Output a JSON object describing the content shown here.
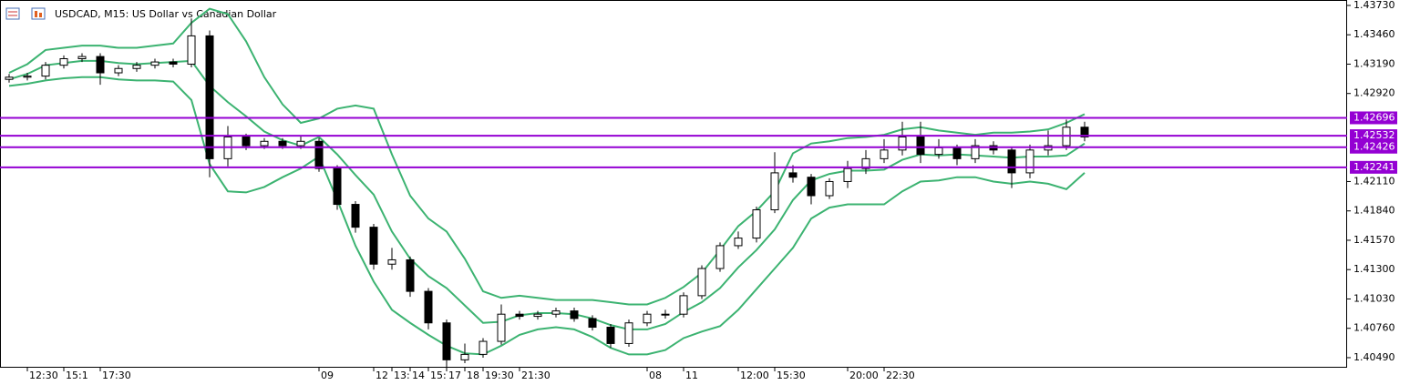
{
  "chart_data": {
    "type": "candlestick",
    "title": "USDCAD, M15:  US Dollar vs Canadian Dollar",
    "categories": [
      null,
      "12:30",
      null,
      "15:1",
      null,
      "17:30",
      null,
      null,
      null,
      null,
      null,
      null,
      null,
      null,
      null,
      null,
      null,
      "09",
      null,
      null,
      "12",
      "13:",
      "14",
      "15:",
      "17",
      "18",
      "19:30",
      null,
      "21:30",
      null,
      null,
      null,
      null,
      null,
      null,
      "08",
      null,
      "11",
      null,
      null,
      "12:00",
      null,
      "15:30",
      null,
      null,
      null,
      "20:00",
      null,
      "22:30",
      null,
      null,
      null,
      null,
      null,
      null,
      null,
      null,
      null,
      null,
      null
    ],
    "open": [
      1.4305,
      1.4307,
      1.4308,
      1.4318,
      1.4324,
      1.4326,
      1.4311,
      1.4315,
      1.4318,
      1.4321,
      1.4319,
      1.4345,
      1.4232,
      1.4252,
      1.4244,
      1.4248,
      1.4244,
      1.4248,
      1.4223,
      1.419,
      1.4169,
      1.4135,
      1.4139,
      1.411,
      1.4081,
      1.4047,
      1.4052,
      1.4064,
      1.4089,
      1.4087,
      1.4089,
      1.4092,
      1.4085,
      1.4077,
      1.4062,
      1.4081,
      1.4089,
      1.4089,
      1.4106,
      1.4131,
      1.4152,
      1.4159,
      1.4185,
      1.4219,
      1.4215,
      1.4198,
      1.4211,
      1.4223,
      1.4232,
      1.424,
      1.4252,
      1.4236,
      1.4242,
      1.4232,
      1.4244,
      1.424,
      1.4219,
      1.424,
      1.4244,
      1.4261
    ],
    "high": [
      1.431,
      1.4311,
      1.4321,
      1.4327,
      1.4329,
      1.4329,
      1.4318,
      1.4321,
      1.4324,
      1.4324,
      1.4361,
      1.435,
      1.4262,
      1.4255,
      1.4251,
      1.4251,
      1.4253,
      1.4251,
      1.4226,
      1.4193,
      1.4172,
      1.415,
      1.4142,
      1.4113,
      1.4084,
      1.4062,
      1.4067,
      1.4098,
      1.4092,
      1.4092,
      1.4095,
      1.4095,
      1.4088,
      1.408,
      1.4084,
      1.4092,
      1.4093,
      1.4109,
      1.4134,
      1.4155,
      1.4165,
      1.4188,
      1.4238,
      1.4226,
      1.4218,
      1.4214,
      1.423,
      1.424,
      1.425,
      1.4266,
      1.4266,
      1.425,
      1.4245,
      1.425,
      1.4248,
      1.4243,
      1.4245,
      1.4258,
      1.4268,
      1.4266
    ],
    "low": [
      1.4302,
      1.4304,
      1.4305,
      1.4315,
      1.4321,
      1.43,
      1.4308,
      1.4312,
      1.4315,
      1.4316,
      1.4316,
      1.4215,
      1.4225,
      1.424,
      1.4241,
      1.4241,
      1.4241,
      1.422,
      1.4185,
      1.4164,
      1.413,
      1.413,
      1.4105,
      1.4075,
      1.404,
      1.4044,
      1.4049,
      1.4061,
      1.4084,
      1.4084,
      1.4086,
      1.4082,
      1.4074,
      1.4058,
      1.4059,
      1.4078,
      1.4085,
      1.4086,
      1.4103,
      1.4128,
      1.4149,
      1.4155,
      1.4182,
      1.421,
      1.419,
      1.4195,
      1.4205,
      1.4218,
      1.4228,
      1.4235,
      1.4228,
      1.4232,
      1.4226,
      1.4228,
      1.4236,
      1.4205,
      1.4214,
      1.4235,
      1.424,
      1.4248
    ],
    "close": [
      1.4307,
      1.4308,
      1.4318,
      1.4324,
      1.4326,
      1.4311,
      1.4315,
      1.4318,
      1.4321,
      1.4319,
      1.4345,
      1.4232,
      1.4252,
      1.4244,
      1.4248,
      1.4244,
      1.4248,
      1.4223,
      1.419,
      1.4169,
      1.4135,
      1.4139,
      1.411,
      1.4081,
      1.4047,
      1.4052,
      1.4064,
      1.4089,
      1.4087,
      1.4089,
      1.4092,
      1.4085,
      1.4077,
      1.4062,
      1.4081,
      1.4089,
      1.4089,
      1.4106,
      1.4131,
      1.4152,
      1.4159,
      1.4185,
      1.4219,
      1.4215,
      1.4198,
      1.4211,
      1.4223,
      1.4232,
      1.424,
      1.4252,
      1.4236,
      1.4242,
      1.4232,
      1.4244,
      1.424,
      1.4219,
      1.424,
      1.4244,
      1.4261,
      1.4252
    ],
    "candle_color": "#000000",
    "bands": [
      {
        "color": "#3cb371",
        "values": [
          1.4311,
          1.4319,
          1.4332,
          1.4334,
          1.4336,
          1.4336,
          1.4334,
          1.4334,
          1.4336,
          1.4338,
          1.4357,
          1.437,
          1.4365,
          1.434,
          1.4307,
          1.4282,
          1.4265,
          1.4269,
          1.4278,
          1.4281,
          1.4278,
          1.4236,
          1.4198,
          1.4177,
          1.4165,
          1.414,
          1.411,
          1.4104,
          1.4106,
          1.4104,
          1.4102,
          1.4102,
          1.4102,
          1.41,
          1.4098,
          1.4098,
          1.4104,
          1.4114,
          1.4127,
          1.4148,
          1.417,
          1.4184,
          1.4202,
          1.4237,
          1.4246,
          1.4248,
          1.4251,
          1.4252,
          1.4254,
          1.4259,
          1.4261,
          1.4258,
          1.4256,
          1.4254,
          1.4256,
          1.4256,
          1.4257,
          1.4259,
          1.4265,
          1.4273
        ]
      },
      {
        "color": "#3cb371",
        "values": [
          1.4305,
          1.431,
          1.4318,
          1.432,
          1.4322,
          1.4322,
          1.432,
          1.4319,
          1.432,
          1.4321,
          1.4322,
          1.4299,
          1.4284,
          1.4271,
          1.4257,
          1.4249,
          1.4244,
          1.4252,
          1.4236,
          1.4217,
          1.4199,
          1.4165,
          1.414,
          1.4124,
          1.4113,
          1.4097,
          1.4081,
          1.4082,
          1.4088,
          1.409,
          1.409,
          1.4089,
          1.4085,
          1.4079,
          1.4075,
          1.4075,
          1.408,
          1.4091,
          1.41,
          1.4113,
          1.4132,
          1.4148,
          1.4167,
          1.4194,
          1.4212,
          1.4218,
          1.4221,
          1.4221,
          1.4222,
          1.4231,
          1.4236,
          1.4235,
          1.4236,
          1.4235,
          1.4234,
          1.4233,
          1.4234,
          1.4234,
          1.4235,
          1.4246
        ]
      },
      {
        "color": "#3cb371",
        "values": [
          1.4299,
          1.4301,
          1.4304,
          1.4306,
          1.4307,
          1.4307,
          1.4305,
          1.4304,
          1.4304,
          1.4303,
          1.4286,
          1.4227,
          1.4202,
          1.4201,
          1.4206,
          1.4215,
          1.4223,
          1.4234,
          1.4194,
          1.4152,
          1.4119,
          1.4093,
          1.4081,
          1.407,
          1.406,
          1.4053,
          1.4052,
          1.406,
          1.407,
          1.4075,
          1.4077,
          1.4075,
          1.4068,
          1.4058,
          1.4052,
          1.4052,
          1.4056,
          1.4067,
          1.4073,
          1.4078,
          1.4093,
          1.4112,
          1.4131,
          1.415,
          1.4177,
          1.4187,
          1.419,
          1.419,
          1.419,
          1.4202,
          1.4211,
          1.4212,
          1.4215,
          1.4215,
          1.4211,
          1.4209,
          1.4211,
          1.4209,
          1.4204,
          1.4219
        ]
      }
    ],
    "levels": {
      "color": "#9400d3",
      "values": [
        1.42696,
        1.42532,
        1.42426,
        1.42241
      ],
      "value_labels": [
        "1.42696",
        "1.42532",
        "1.42426",
        "1.42241"
      ]
    },
    "ylim": [
      1.40406,
      1.4378
    ],
    "yticks": [
      {
        "value": 1.4373,
        "label": "1.43730"
      },
      {
        "value": 1.4346,
        "label": "1.43460"
      },
      {
        "value": 1.4319,
        "label": "1.43190"
      },
      {
        "value": 1.4292,
        "label": "1.42920"
      },
      {
        "value": 1.4211,
        "label": "1.42110"
      },
      {
        "value": 1.4184,
        "label": "1.41840"
      },
      {
        "value": 1.4157,
        "label": "1.41570"
      },
      {
        "value": 1.413,
        "label": "1.41300"
      },
      {
        "value": 1.4103,
        "label": "1.41030"
      },
      {
        "value": 1.4076,
        "label": "1.40760"
      },
      {
        "value": 1.4049,
        "label": "1.40490"
      }
    ]
  }
}
